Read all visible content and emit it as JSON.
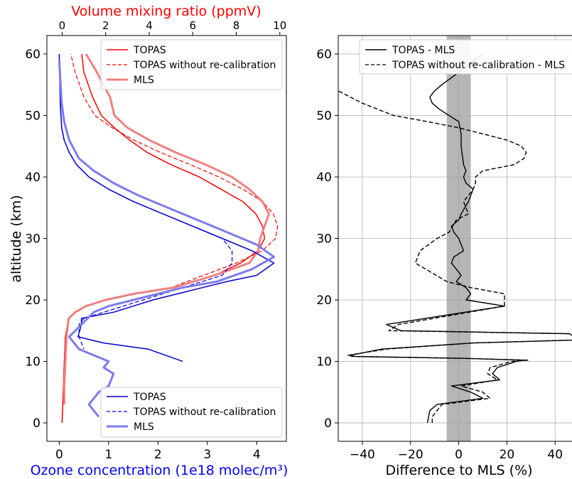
{
  "chart_data": [
    {
      "type": "line",
      "panel": "left",
      "xlabel_bottom": "Ozone concentration (1e18 molec/m³)",
      "xlabel_top": "Volume mixing ratio (ppmV)",
      "ylabel": "altitude (km)",
      "xlim_bottom": [
        -0.25,
        4.6
      ],
      "xlim_top": [
        -0.7,
        10.3
      ],
      "ylim": [
        -3,
        63
      ],
      "xticks_bottom": [
        "0",
        "1",
        "2",
        "3",
        "4"
      ],
      "xticks_top": [
        "0",
        "2",
        "4",
        "6",
        "8",
        "10"
      ],
      "yticks": [
        "0",
        "10",
        "20",
        "30",
        "40",
        "50",
        "60"
      ],
      "colors": {
        "top_axis": "#ff0000",
        "bottom_axis": "#0000ff"
      },
      "legend_top": {
        "placement": "top-right",
        "entries": [
          "TOPAS",
          "TOPAS without re-calibration",
          "MLS"
        ]
      },
      "legend_bottom": {
        "placement": "bottom-right",
        "entries": [
          "TOPAS",
          "TOPAS without re-calibration",
          "MLS"
        ]
      },
      "series": [
        {
          "name": "TOPAS",
          "axis": "top",
          "color": "#ff0000",
          "style": "solid",
          "width": 1.5,
          "x": [
            0.0,
            0.05,
            0.1,
            0.15,
            0.3,
            0.6,
            1.1,
            2.0,
            3.4,
            5.2,
            7.0,
            8.2,
            9.0,
            9.3,
            9.2,
            8.9,
            8.3,
            7.3,
            6.3,
            5.0,
            3.9,
            3.1,
            2.4,
            1.8,
            1.4,
            1.0,
            0.9
          ],
          "y": [
            0,
            5,
            10,
            14,
            17,
            18,
            19,
            20,
            21,
            22,
            24,
            26,
            28,
            30,
            32,
            34,
            36,
            38,
            40,
            42,
            44,
            46,
            48,
            50,
            53,
            57,
            60
          ]
        },
        {
          "name": "TOPAS without re-calibration",
          "axis": "top",
          "color": "#ff0000",
          "style": "dashed",
          "width": 1.2,
          "x": [
            0.0,
            0.05,
            0.1,
            0.15,
            0.3,
            0.6,
            1.1,
            2.0,
            3.4,
            5.0,
            6.5,
            8.0,
            9.2,
            9.8,
            9.9,
            9.7,
            9.2,
            8.3,
            7.2,
            5.9,
            4.5,
            3.3,
            2.3,
            1.5,
            1.0,
            0.6,
            0.4
          ],
          "y": [
            0,
            5,
            10,
            14,
            17,
            18,
            19,
            20,
            21,
            22,
            24,
            26,
            28,
            30,
            32,
            34,
            36,
            38,
            40,
            42,
            44,
            46,
            48,
            50,
            53,
            57,
            60
          ]
        },
        {
          "name": "MLS",
          "axis": "top",
          "color": "#f08080",
          "style": "solid",
          "width": 3,
          "x": [
            0.1,
            0.1,
            0.15,
            0.2,
            0.3,
            0.6,
            1.1,
            2.0,
            3.3,
            5.1,
            7.0,
            8.6,
            9.0,
            9.1,
            9.3,
            9.5,
            9.2,
            8.6,
            7.8,
            6.6,
            5.2,
            4.0,
            3.0,
            2.4,
            2.2,
            1.6,
            1.1
          ],
          "y": [
            3,
            6,
            10,
            14,
            17,
            18,
            19,
            20,
            21,
            22,
            24,
            26,
            28,
            30,
            32,
            34,
            36,
            38,
            40,
            42,
            44,
            46,
            48,
            50,
            53,
            57,
            60
          ]
        },
        {
          "name": "TOPAS",
          "axis": "bottom",
          "color": "#0000cc",
          "style": "solid",
          "width": 1.5,
          "x": [
            0.0,
            0.01,
            0.02,
            0.05,
            0.1,
            0.2,
            0.35,
            0.6,
            1.0,
            1.5,
            2.1,
            2.7,
            3.3,
            3.9,
            4.35,
            4.0,
            3.4,
            2.9,
            2.4,
            1.9,
            1.5,
            1.1,
            0.45,
            0.45,
            0.38,
            0.9,
            1.8,
            2.5
          ],
          "y": [
            60,
            56,
            52,
            48,
            46,
            44,
            42,
            40,
            38,
            36,
            34,
            32,
            30,
            28,
            26,
            24,
            23,
            22,
            21,
            20,
            19,
            18,
            17,
            16,
            14,
            13,
            12,
            10
          ]
        },
        {
          "name": "TOPAS without re-calibration",
          "axis": "bottom",
          "color": "#0000ee",
          "style": "dashed",
          "width": 1.2,
          "x": [
            0.0,
            0.01,
            0.02,
            0.05,
            0.1,
            0.2,
            0.35,
            0.6,
            1.0,
            1.5,
            2.1,
            2.7,
            3.3,
            3.5,
            3.5,
            3.3,
            2.9,
            2.5,
            2.1,
            1.7,
            1.3,
            0.9,
            0.5,
            0.4,
            0.4,
            0.5
          ],
          "y": [
            60,
            56,
            52,
            48,
            46,
            44,
            42,
            40,
            38,
            36,
            34,
            32,
            30,
            28,
            26,
            24,
            23,
            22,
            21,
            20,
            19,
            18,
            17,
            16,
            14,
            12
          ]
        },
        {
          "name": "MLS",
          "axis": "bottom",
          "color": "#7b7bf0",
          "style": "solid",
          "width": 3,
          "x": [
            0.0,
            0.02,
            0.05,
            0.1,
            0.2,
            0.4,
            0.7,
            1.1,
            1.6,
            2.2,
            2.8,
            3.4,
            4.0,
            4.35,
            3.9,
            3.2,
            2.5,
            2.0,
            1.5,
            1.0,
            0.7,
            0.2,
            0.4,
            0.7,
            1.0,
            0.9,
            1.1,
            1.0,
            0.8,
            0.6,
            0.8
          ],
          "y": [
            59,
            56,
            52,
            49,
            46,
            43,
            41,
            39,
            37,
            35,
            33,
            31,
            29,
            27,
            25,
            23,
            22,
            21,
            20,
            19,
            18,
            14,
            12,
            11,
            10,
            9,
            8,
            6,
            5,
            3,
            1
          ]
        }
      ]
    },
    {
      "type": "line",
      "panel": "right",
      "xlabel": "Difference to MLS (%)",
      "xlim": [
        -50,
        47
      ],
      "ylim": [
        -3,
        63
      ],
      "xticks": [
        "−40",
        "−20",
        "0",
        "20",
        "40"
      ],
      "yticks": [
        "0",
        "10",
        "20",
        "30",
        "40",
        "50",
        "60"
      ],
      "grid": true,
      "shaded_band": {
        "x_from": -5,
        "x_to": 5,
        "color": "#9e9e9e"
      },
      "legend": {
        "placement": "top-right",
        "entries": [
          "TOPAS - MLS",
          "TOPAS without re-calibration - MLS"
        ]
      },
      "series": [
        {
          "name": "TOPAS - MLS",
          "color": "#000000",
          "style": "solid",
          "x": [
            -13,
            -12,
            -9,
            10,
            5,
            -3,
            17,
            14,
            16,
            24,
            27,
            2,
            -43,
            -45,
            -32,
            6,
            50,
            46,
            -24,
            -30,
            19,
            3,
            5,
            3,
            -1,
            1,
            -3,
            -2,
            2,
            0,
            -2,
            -3,
            0,
            1,
            4,
            6,
            3,
            2,
            3,
            2,
            1,
            1,
            0,
            -4,
            -8,
            -11,
            -12,
            -10,
            -7,
            0,
            10
          ],
          "y": [
            0,
            2,
            3,
            4,
            5,
            6,
            7,
            8,
            9,
            10,
            10.2,
            10.5,
            10.8,
            11,
            12,
            13,
            13.5,
            14.5,
            15,
            16,
            19,
            20,
            21,
            22,
            23,
            24,
            26,
            27,
            28,
            30,
            31,
            32,
            33,
            34,
            36,
            38,
            39,
            40,
            41,
            42,
            45,
            47,
            49,
            50,
            51,
            52,
            53,
            54,
            55,
            57,
            60
          ]
        },
        {
          "name": "TOPAS without re-calibration - MLS",
          "color": "#000000",
          "style": "dashed",
          "x": [
            -11,
            -11,
            -7,
            13,
            10,
            1,
            16,
            12,
            13,
            22,
            29,
            2,
            -44,
            -46,
            -30,
            6,
            50,
            46,
            -29,
            -25,
            19,
            19,
            5,
            -5,
            -18,
            -16,
            -9,
            -4,
            -1,
            4,
            2,
            6,
            7,
            7,
            10,
            23,
            27,
            28,
            26,
            20,
            10,
            0,
            -13,
            -27,
            -40,
            -50
          ],
          "y": [
            0,
            1,
            3,
            4,
            5,
            6,
            7,
            8,
            9,
            10,
            10.2,
            10.5,
            10.8,
            11,
            12,
            13,
            13.5,
            14.5,
            15,
            16,
            19,
            21,
            22,
            23,
            26,
            28,
            30,
            31,
            33,
            34,
            36,
            38,
            39,
            40,
            41,
            42,
            43,
            44,
            45,
            46,
            47,
            48,
            49,
            50,
            52,
            54
          ]
        }
      ]
    }
  ]
}
